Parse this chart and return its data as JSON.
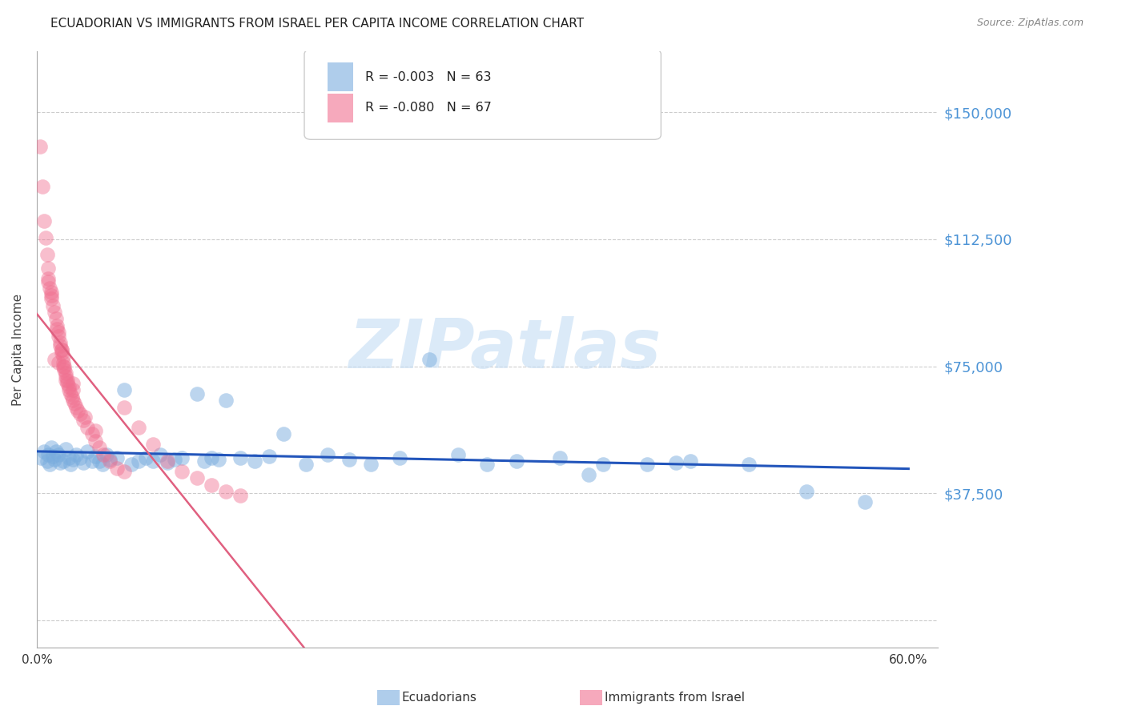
{
  "title": "ECUADORIAN VS IMMIGRANTS FROM ISRAEL PER CAPITA INCOME CORRELATION CHART",
  "source": "Source: ZipAtlas.com",
  "ylabel": "Per Capita Income",
  "xlim": [
    0.0,
    0.62
  ],
  "ylim": [
    -8000,
    168000
  ],
  "yticks": [
    0,
    37500,
    75000,
    112500,
    150000
  ],
  "ytick_labels": [
    "",
    "$37,500",
    "$75,000",
    "$112,500",
    "$150,000"
  ],
  "xticks": [
    0.0,
    0.1,
    0.2,
    0.3,
    0.4,
    0.5,
    0.6
  ],
  "xtick_labels": [
    "0.0%",
    "",
    "",
    "",
    "",
    "",
    "60.0%"
  ],
  "blue_R": -0.003,
  "blue_N": 63,
  "pink_R": -0.08,
  "pink_N": 67,
  "blue_color": "#7aadde",
  "pink_color": "#f07090",
  "watermark": "ZIPatlas",
  "blue_scatter_x": [
    0.003,
    0.005,
    0.007,
    0.008,
    0.009,
    0.01,
    0.011,
    0.012,
    0.013,
    0.015,
    0.016,
    0.018,
    0.02,
    0.022,
    0.023,
    0.025,
    0.027,
    0.03,
    0.032,
    0.035,
    0.038,
    0.04,
    0.043,
    0.045,
    0.048,
    0.05,
    0.055,
    0.06,
    0.065,
    0.07,
    0.075,
    0.08,
    0.085,
    0.09,
    0.095,
    0.1,
    0.11,
    0.115,
    0.12,
    0.125,
    0.13,
    0.14,
    0.15,
    0.16,
    0.17,
    0.185,
    0.2,
    0.215,
    0.23,
    0.25,
    0.27,
    0.29,
    0.31,
    0.33,
    0.36,
    0.39,
    0.42,
    0.45,
    0.49,
    0.53,
    0.57,
    0.44,
    0.38
  ],
  "blue_scatter_y": [
    48000,
    50000,
    47000,
    49000,
    46000,
    51000,
    48500,
    47500,
    50000,
    49000,
    46500,
    47000,
    50500,
    48000,
    46000,
    47500,
    49000,
    48000,
    46500,
    50000,
    47000,
    48500,
    47000,
    46000,
    49000,
    47500,
    48000,
    68000,
    46000,
    47000,
    48000,
    47000,
    49000,
    46500,
    47500,
    48000,
    67000,
    47000,
    48000,
    47500,
    65000,
    48000,
    47000,
    48500,
    55000,
    46000,
    49000,
    47500,
    46000,
    48000,
    77000,
    49000,
    46000,
    47000,
    48000,
    46000,
    46000,
    47000,
    46000,
    38000,
    35000,
    46500,
    43000
  ],
  "pink_scatter_x": [
    0.002,
    0.004,
    0.005,
    0.006,
    0.007,
    0.008,
    0.008,
    0.009,
    0.01,
    0.01,
    0.011,
    0.012,
    0.013,
    0.014,
    0.014,
    0.015,
    0.015,
    0.016,
    0.016,
    0.017,
    0.017,
    0.018,
    0.018,
    0.019,
    0.019,
    0.02,
    0.02,
    0.021,
    0.021,
    0.022,
    0.022,
    0.023,
    0.024,
    0.025,
    0.026,
    0.027,
    0.028,
    0.03,
    0.032,
    0.035,
    0.038,
    0.04,
    0.043,
    0.046,
    0.05,
    0.055,
    0.06,
    0.07,
    0.08,
    0.09,
    0.1,
    0.11,
    0.12,
    0.13,
    0.14,
    0.033,
    0.025,
    0.018,
    0.015,
    0.012,
    0.06,
    0.04,
    0.025,
    0.02,
    0.017,
    0.01,
    0.008
  ],
  "pink_scatter_y": [
    140000,
    128000,
    118000,
    113000,
    108000,
    104000,
    101000,
    98000,
    97000,
    95000,
    93000,
    91000,
    89000,
    87000,
    86000,
    85000,
    84000,
    82000,
    81000,
    80000,
    79000,
    78000,
    76000,
    75000,
    74000,
    73000,
    72000,
    71000,
    70000,
    69000,
    68000,
    67000,
    66000,
    65000,
    64000,
    63000,
    62000,
    61000,
    59000,
    57000,
    55000,
    53000,
    51000,
    49000,
    47000,
    45000,
    63000,
    57000,
    52000,
    47000,
    44000,
    42000,
    40000,
    38000,
    37000,
    60000,
    68000,
    75000,
    76000,
    77000,
    44000,
    56000,
    70000,
    71000,
    80000,
    96000,
    100000
  ]
}
